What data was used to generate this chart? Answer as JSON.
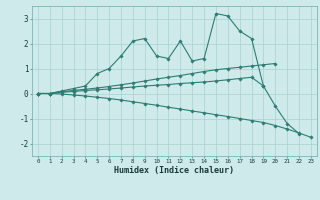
{
  "xlabel": "Humidex (Indice chaleur)",
  "x_values": [
    0,
    1,
    2,
    3,
    4,
    5,
    6,
    7,
    8,
    9,
    10,
    11,
    12,
    13,
    14,
    15,
    16,
    17,
    18,
    19,
    20,
    21,
    22,
    23
  ],
  "line1_y": [
    0.0,
    0.0,
    0.1,
    0.2,
    0.3,
    0.8,
    1.0,
    1.5,
    2.1,
    2.2,
    1.5,
    1.4,
    2.1,
    1.3,
    1.4,
    3.2,
    3.1,
    2.5,
    2.2,
    0.3,
    null,
    null,
    null,
    null
  ],
  "line2_y": [
    0.0,
    0.0,
    0.08,
    0.12,
    0.17,
    0.22,
    0.28,
    0.35,
    0.42,
    0.5,
    0.58,
    0.65,
    0.72,
    0.8,
    0.88,
    0.95,
    1.0,
    1.05,
    1.1,
    1.15,
    1.2,
    null,
    null,
    null
  ],
  "line3_y": [
    0.0,
    0.0,
    0.05,
    0.08,
    0.12,
    0.15,
    0.18,
    0.22,
    0.26,
    0.3,
    0.33,
    0.36,
    0.4,
    0.43,
    0.46,
    0.5,
    0.55,
    0.6,
    0.65,
    0.3,
    -0.5,
    -1.2,
    -1.6,
    null
  ],
  "line4_y": [
    0.0,
    0.0,
    -0.02,
    -0.06,
    -0.1,
    -0.15,
    -0.2,
    -0.26,
    -0.33,
    -0.4,
    -0.47,
    -0.55,
    -0.62,
    -0.7,
    -0.77,
    -0.85,
    -0.92,
    -1.0,
    -1.08,
    -1.16,
    -1.28,
    -1.42,
    -1.58,
    -1.75
  ],
  "bg_color": "#ceeaea",
  "line_color": "#2e7d72",
  "grid_color": "#aacfcf",
  "ylim": [
    -2.5,
    3.5
  ],
  "xlim": [
    -0.5,
    23.5
  ],
  "yticks": [
    -2,
    -1,
    0,
    1,
    2,
    3
  ]
}
